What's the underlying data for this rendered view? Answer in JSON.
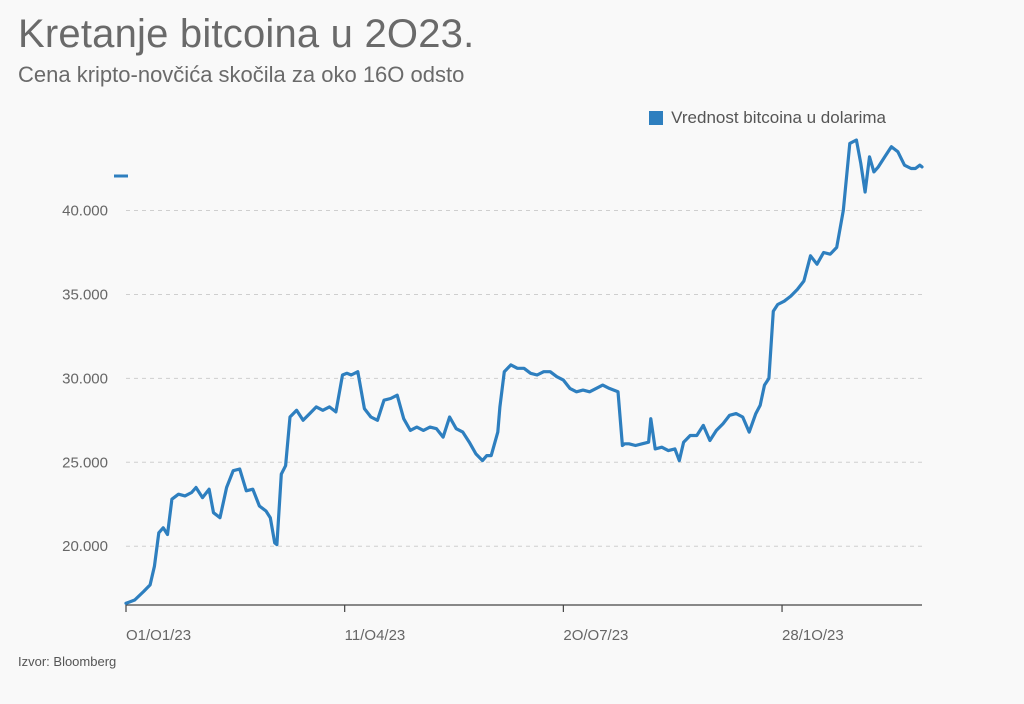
{
  "title": "Kretanje bitcoina u 2O23.",
  "subtitle": "Cena kripto-novčića skočila za oko 16O odsto",
  "source": "Izvor: Bloomberg",
  "legend": {
    "label": "Vrednost bitcoina u dolarima",
    "color": "#2e7fbf"
  },
  "chart_data": {
    "type": "line",
    "title": "Kretanje bitcoina u 2O23.",
    "subtitle": "Cena kripto-novčića skočila za oko 16O odsto",
    "xlabel": "",
    "ylabel": "",
    "legend_position": "top-right",
    "grid": true,
    "ylim": [
      16500,
      44200
    ],
    "xlim": [
      "2023-01-01",
      "2023-12-31"
    ],
    "y_ticks": [
      {
        "value": 20000,
        "label": "20.000"
      },
      {
        "value": 25000,
        "label": "25.000"
      },
      {
        "value": 30000,
        "label": "30.000"
      },
      {
        "value": 35000,
        "label": "35.000"
      },
      {
        "value": 40000,
        "label": "40.000"
      }
    ],
    "x_ticks": [
      {
        "value": "2023-01-01",
        "label": "O1/O1/23"
      },
      {
        "value": "2023-04-11",
        "label": "11/O4/23"
      },
      {
        "value": "2023-07-20",
        "label": "2O/O7/23"
      },
      {
        "value": "2023-10-28",
        "label": "28/1O/23"
      }
    ],
    "series": [
      {
        "name": "Vrednost bitcoina u dolarima",
        "color": "#2e7fbf",
        "x": [
          "2023-01-01",
          "2023-01-05",
          "2023-01-09",
          "2023-01-12",
          "2023-01-14",
          "2023-01-16",
          "2023-01-18",
          "2023-01-20",
          "2023-01-22",
          "2023-01-25",
          "2023-01-28",
          "2023-01-31",
          "2023-02-02",
          "2023-02-05",
          "2023-02-08",
          "2023-02-10",
          "2023-02-13",
          "2023-02-16",
          "2023-02-19",
          "2023-02-22",
          "2023-02-25",
          "2023-02-28",
          "2023-03-03",
          "2023-03-06",
          "2023-03-08",
          "2023-03-10",
          "2023-03-11",
          "2023-03-13",
          "2023-03-15",
          "2023-03-17",
          "2023-03-20",
          "2023-03-23",
          "2023-03-26",
          "2023-03-29",
          "2023-04-01",
          "2023-04-04",
          "2023-04-07",
          "2023-04-10",
          "2023-04-12",
          "2023-04-14",
          "2023-04-17",
          "2023-04-20",
          "2023-04-23",
          "2023-04-26",
          "2023-04-29",
          "2023-05-02",
          "2023-05-05",
          "2023-05-08",
          "2023-05-11",
          "2023-05-14",
          "2023-05-17",
          "2023-05-20",
          "2023-05-23",
          "2023-05-26",
          "2023-05-29",
          "2023-06-01",
          "2023-06-04",
          "2023-06-07",
          "2023-06-10",
          "2023-06-13",
          "2023-06-15",
          "2023-06-17",
          "2023-06-20",
          "2023-06-21",
          "2023-06-23",
          "2023-06-26",
          "2023-06-29",
          "2023-07-02",
          "2023-07-05",
          "2023-07-08",
          "2023-07-11",
          "2023-07-14",
          "2023-07-17",
          "2023-07-20",
          "2023-07-23",
          "2023-07-26",
          "2023-07-29",
          "2023-08-01",
          "2023-08-04",
          "2023-08-07",
          "2023-08-10",
          "2023-08-14",
          "2023-08-16",
          "2023-08-17",
          "2023-08-19",
          "2023-08-22",
          "2023-08-25",
          "2023-08-28",
          "2023-08-29",
          "2023-08-31",
          "2023-09-03",
          "2023-09-06",
          "2023-09-09",
          "2023-09-11",
          "2023-09-13",
          "2023-09-16",
          "2023-09-19",
          "2023-09-22",
          "2023-09-25",
          "2023-09-28",
          "2023-10-01",
          "2023-10-04",
          "2023-10-07",
          "2023-10-10",
          "2023-10-13",
          "2023-10-16",
          "2023-10-18",
          "2023-10-20",
          "2023-10-22",
          "2023-10-23",
          "2023-10-24",
          "2023-10-26",
          "2023-10-29",
          "2023-11-01",
          "2023-11-04",
          "2023-11-07",
          "2023-11-10",
          "2023-11-13",
          "2023-11-16",
          "2023-11-19",
          "2023-11-22",
          "2023-11-25",
          "2023-11-28",
          "2023-12-01",
          "2023-12-03",
          "2023-12-05",
          "2023-12-07",
          "2023-12-09",
          "2023-12-11",
          "2023-12-14",
          "2023-12-17",
          "2023-12-20",
          "2023-12-23",
          "2023-12-26",
          "2023-12-28",
          "2023-12-30",
          "2023-12-31"
        ],
        "values": [
          16600,
          16800,
          17300,
          17700,
          18800,
          20800,
          21100,
          20700,
          22800,
          23100,
          23000,
          23200,
          23500,
          22900,
          23400,
          22000,
          21700,
          23500,
          24500,
          24600,
          23300,
          23400,
          22400,
          22100,
          21700,
          20200,
          20100,
          24300,
          24800,
          27700,
          28100,
          27500,
          27900,
          28300,
          28100,
          28300,
          28000,
          30200,
          30300,
          30200,
          30400,
          28200,
          27700,
          27500,
          28700,
          28800,
          29000,
          27600,
          26900,
          27100,
          26900,
          27100,
          27000,
          26500,
          27700,
          27000,
          26800,
          26200,
          25500,
          25100,
          25400,
          25400,
          26800,
          28300,
          30400,
          30800,
          30600,
          30600,
          30300,
          30200,
          30400,
          30400,
          30100,
          29900,
          29400,
          29200,
          29300,
          29200,
          29400,
          29600,
          29400,
          29200,
          26000,
          26100,
          26100,
          26000,
          26100,
          26200,
          27600,
          25800,
          25900,
          25700,
          25800,
          25100,
          26200,
          26600,
          26600,
          27200,
          26300,
          26900,
          27300,
          27800,
          27900,
          27700,
          26800,
          27900,
          28400,
          29600,
          30000,
          32000,
          34000,
          34400,
          34600,
          34900,
          35300,
          35800,
          37300,
          36800,
          37500,
          37400,
          37800,
          40000,
          44000,
          44200,
          42800,
          41100,
          43200,
          42300,
          42600,
          43200,
          43800,
          43500,
          42700,
          42500,
          42500,
          42700,
          42600
        ]
      }
    ]
  }
}
